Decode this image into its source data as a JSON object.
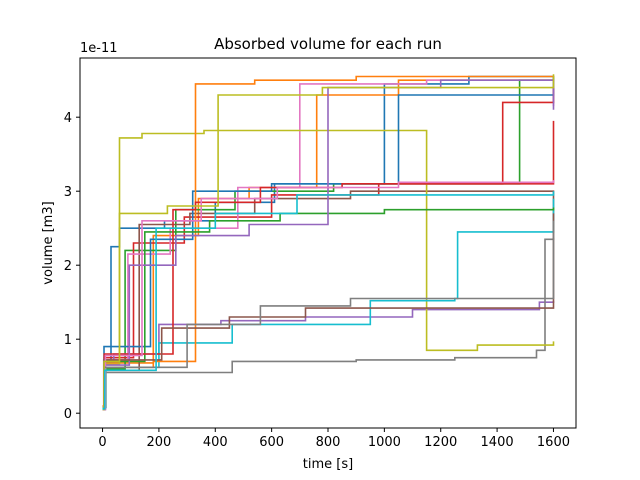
{
  "chart_data": {
    "type": "line",
    "title": "Absorbed volume for each run",
    "xlabel": "time [s]",
    "ylabel": "volume [m3]",
    "y_offset_text": "1e-11",
    "xlim": [
      -80,
      1680
    ],
    "ylim": [
      -0.2,
      4.8
    ],
    "x_ticks": [
      0,
      200,
      400,
      600,
      800,
      1000,
      1200,
      1400,
      1600
    ],
    "x_tick_labels": [
      "0",
      "200",
      "400",
      "600",
      "800",
      "1000",
      "1200",
      "1400",
      "1600"
    ],
    "y_ticks": [
      0,
      1,
      2,
      3,
      4
    ],
    "y_tick_labels": [
      "0",
      "1",
      "2",
      "3",
      "4"
    ],
    "grid": false,
    "legend": "none",
    "drawstyle": "steps-post",
    "colors": [
      "#1f77b4",
      "#ff7f0e",
      "#2ca02c",
      "#d62728",
      "#9467bd",
      "#8c564b",
      "#e377c2",
      "#7f7f7f",
      "#bcbd22",
      "#17becf"
    ],
    "series": [
      {
        "x": [
          0,
          8,
          30,
          60,
          220,
          400,
          610,
          1000,
          1300,
          1600
        ],
        "y": [
          0.05,
          0.72,
          2.25,
          2.5,
          2.6,
          2.85,
          3.1,
          4.45,
          4.55,
          4.56
        ]
      },
      {
        "x": [
          0,
          5,
          180,
          340,
          520,
          760,
          1050,
          1600
        ],
        "y": [
          0.1,
          0.68,
          2.4,
          2.9,
          3.05,
          4.3,
          4.5,
          4.55
        ]
      },
      {
        "x": [
          0,
          12,
          80,
          260,
          470,
          820,
          1480,
          1600
        ],
        "y": [
          0.08,
          0.6,
          2.2,
          2.75,
          3.0,
          3.1,
          4.5,
          4.52
        ]
      },
      {
        "x": [
          0,
          6,
          110,
          290,
          600,
          980,
          1600
        ],
        "y": [
          0.06,
          0.75,
          2.3,
          2.65,
          2.95,
          3.1,
          3.95
        ]
      },
      {
        "x": [
          0,
          10,
          40,
          200,
          420,
          720,
          1100,
          1550,
          1600
        ],
        "y": [
          0.05,
          0.7,
          0.8,
          1.2,
          1.25,
          1.3,
          1.4,
          1.5,
          1.52
        ]
      },
      {
        "x": [
          0,
          8,
          130,
          310,
          540,
          880,
          1600
        ],
        "y": [
          0.07,
          0.58,
          2.55,
          2.7,
          2.9,
          3.0,
          2.6
        ]
      },
      {
        "x": [
          0,
          4,
          90,
          240,
          480,
          700,
          1150,
          1600
        ],
        "y": [
          0.06,
          0.72,
          2.15,
          2.5,
          3.05,
          4.45,
          4.5,
          4.15
        ]
      },
      {
        "x": [
          0,
          9,
          460,
          900,
          1250,
          1540,
          1570,
          1600
        ],
        "y": [
          0.05,
          0.55,
          0.7,
          0.72,
          0.75,
          0.85,
          2.35,
          2.37
        ]
      },
      {
        "x": [
          0,
          7,
          60,
          140,
          360,
          1150,
          1330,
          1600
        ],
        "y": [
          0.06,
          0.66,
          3.72,
          3.78,
          3.82,
          0.85,
          0.92,
          0.97
        ]
      },
      {
        "x": [
          0,
          11,
          200,
          460,
          950,
          1250,
          1260,
          1600
        ],
        "y": [
          0.07,
          0.62,
          0.95,
          1.2,
          1.52,
          1.55,
          2.45,
          2.9
        ]
      },
      {
        "x": [
          0,
          5,
          170,
          320,
          600,
          1050,
          1600
        ],
        "y": [
          0.06,
          0.9,
          2.35,
          3.0,
          3.1,
          4.3,
          4.55
        ]
      },
      {
        "x": [
          0,
          9,
          180,
          330,
          540,
          900,
          1600
        ],
        "y": [
          0.06,
          0.62,
          0.7,
          4.45,
          4.5,
          4.55,
          4.56
        ]
      },
      {
        "x": [
          0,
          7,
          150,
          380,
          630,
          1000,
          1600
        ],
        "y": [
          0.05,
          0.7,
          2.45,
          2.6,
          2.7,
          2.75,
          2.78
        ]
      },
      {
        "x": [
          0,
          6,
          250,
          330,
          560,
          850,
          1420,
          1600
        ],
        "y": [
          0.06,
          0.8,
          2.75,
          2.85,
          3.05,
          3.1,
          4.2,
          4.4
        ]
      },
      {
        "x": [
          0,
          8,
          95,
          260,
          520,
          800,
          1200,
          1600
        ],
        "y": [
          0.05,
          0.65,
          2.0,
          2.4,
          2.55,
          4.4,
          4.5,
          4.1
        ]
      },
      {
        "x": [
          0,
          6,
          210,
          450,
          720,
          1600
        ],
        "y": [
          0.05,
          0.72,
          1.15,
          1.3,
          1.42,
          2.7
        ]
      },
      {
        "x": [
          0,
          10,
          140,
          350,
          620,
          1050,
          1600
        ],
        "y": [
          0.05,
          0.78,
          2.6,
          2.9,
          3.05,
          3.12,
          3.15
        ]
      },
      {
        "x": [
          0,
          7,
          300,
          560,
          880,
          1360,
          1600
        ],
        "y": [
          0.06,
          0.62,
          1.2,
          1.45,
          1.55,
          1.55,
          2.6
        ]
      },
      {
        "x": [
          0,
          5,
          60,
          230,
          410,
          780,
          1600
        ],
        "y": [
          0.05,
          0.7,
          2.7,
          2.8,
          4.3,
          4.4,
          4.58
        ]
      },
      {
        "x": [
          0,
          8,
          190,
          400,
          690,
          1600
        ],
        "y": [
          0.06,
          0.58,
          2.5,
          2.7,
          2.95,
          3.0
        ]
      }
    ]
  }
}
